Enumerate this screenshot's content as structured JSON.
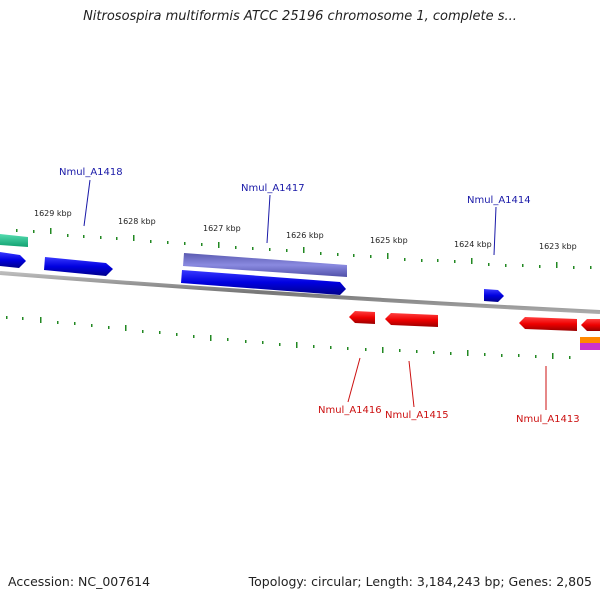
{
  "title": "Nitrosospira multiformis ATCC 25196 chromosome 1, complete s...",
  "footer": {
    "accession": "Accession: NC_007614",
    "summary": "Topology: circular; Length: 3,184,243 bp; Genes: 2,805"
  },
  "ticks": [
    "1629 kbp",
    "1628 kbp",
    "1627 kbp",
    "1626 kbp",
    "1625 kbp",
    "1624 kbp",
    "1623 kbp"
  ],
  "gene_labels": {
    "forward": [
      "Nmul_A1418",
      "Nmul_A1417",
      "Nmul_A1414"
    ],
    "reverse": [
      "Nmul_A1416",
      "Nmul_A1415",
      "Nmul_A1413"
    ]
  },
  "colors": {
    "forward_gene": "#0000dd",
    "cds_feature": "#7070cc",
    "reverse_gene": "#ee0000",
    "misc_feature": "#33cc99",
    "backbone": "#888888",
    "tick": "#228822",
    "forward_label": "#1a1aa8",
    "reverse_label": "#cc1111"
  }
}
